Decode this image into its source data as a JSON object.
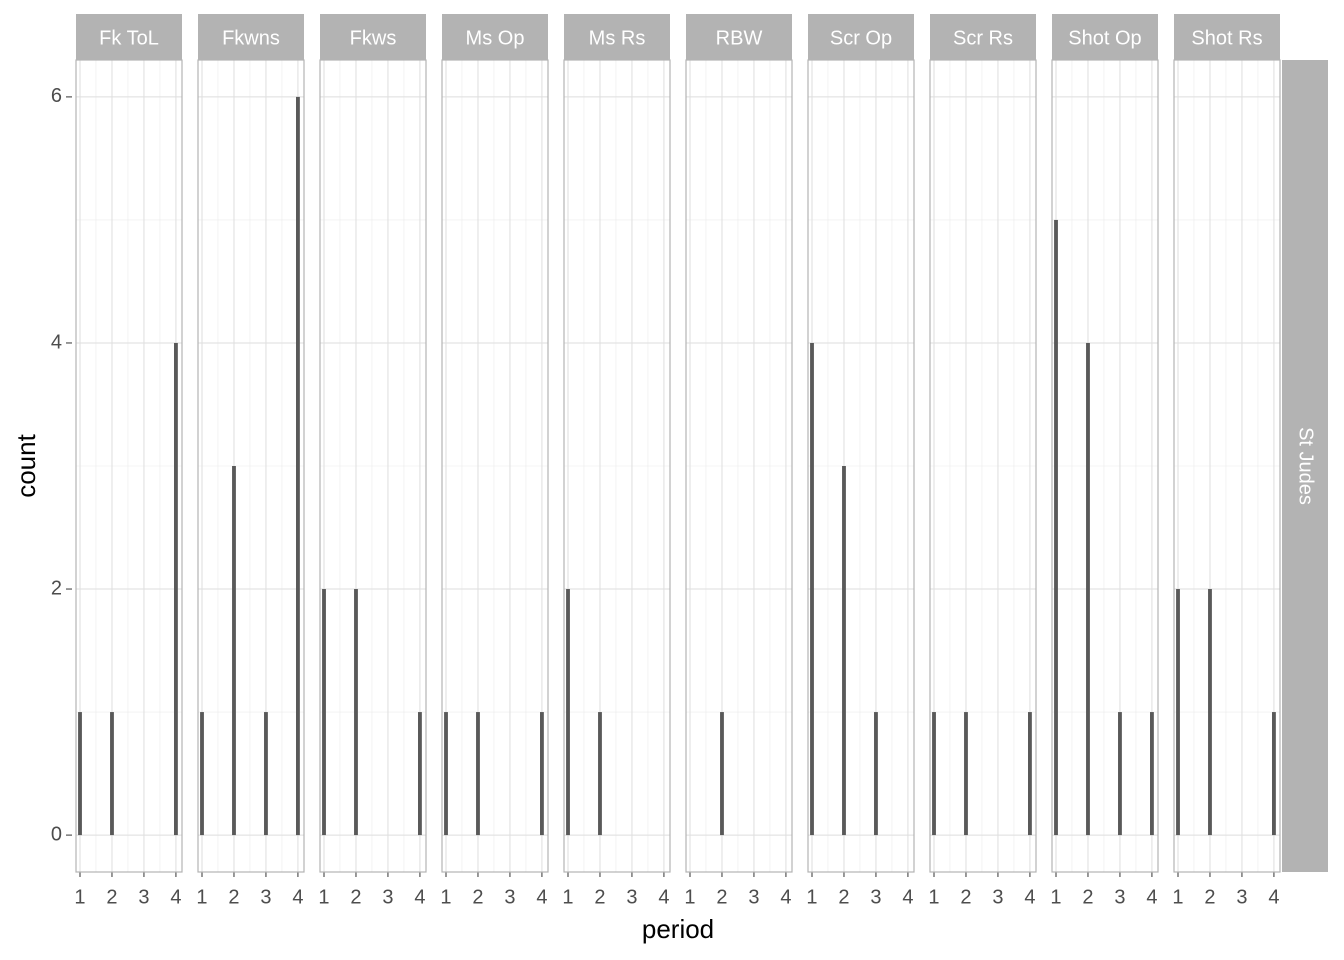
{
  "chart_data": {
    "type": "histogram",
    "x": [
      1,
      2,
      3,
      4
    ],
    "series": [
      {
        "name": "Fk ToL",
        "values": [
          1,
          1,
          0,
          4
        ]
      },
      {
        "name": "Fkwns",
        "values": [
          1,
          3,
          1,
          6
        ]
      },
      {
        "name": "Fkws",
        "values": [
          2,
          2,
          0,
          1
        ]
      },
      {
        "name": "Ms Op",
        "values": [
          1,
          1,
          0,
          1
        ]
      },
      {
        "name": "Ms Rs",
        "values": [
          2,
          1,
          0,
          0
        ]
      },
      {
        "name": "RBW",
        "values": [
          0,
          1,
          0,
          0
        ]
      },
      {
        "name": "Scr Op",
        "values": [
          4,
          3,
          1,
          0
        ]
      },
      {
        "name": "Scr Rs",
        "values": [
          1,
          1,
          0,
          1
        ]
      },
      {
        "name": "Shot Op",
        "values": [
          5,
          4,
          1,
          1
        ]
      },
      {
        "name": "Shot Rs",
        "values": [
          2,
          2,
          0,
          1
        ]
      }
    ],
    "row_label": "St Judes",
    "xlabel": "period",
    "ylabel": "count",
    "color": "#595959",
    "xlim": [
      0.875,
      4.19
    ],
    "xticks": [
      1,
      2,
      3,
      4
    ],
    "ylim": [
      -0.3,
      6.3
    ],
    "yticks": [
      0,
      2,
      4,
      6
    ],
    "grid": true
  }
}
